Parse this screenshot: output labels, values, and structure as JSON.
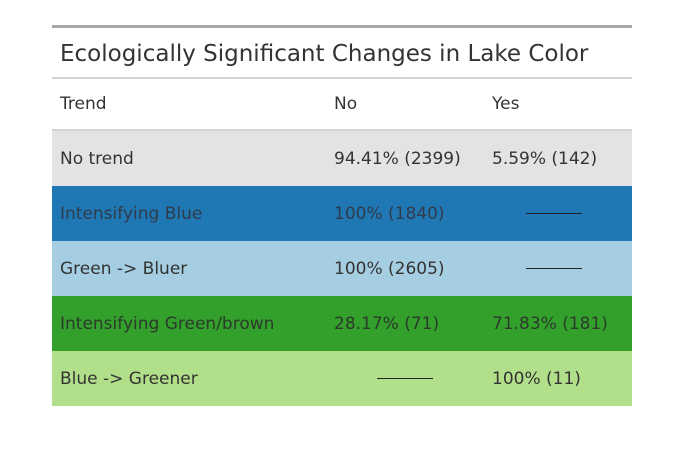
{
  "table": {
    "title": "Ecologically Significant Changes in Lake Color",
    "columns": [
      "Trend",
      "No",
      "Yes"
    ],
    "rows": [
      {
        "trend": "No trend",
        "no": "94.41% (2399)",
        "yes": "5.59% (142)",
        "bg": "#e3e3e3",
        "fg": "#333333"
      },
      {
        "trend": "Intensifying Blue",
        "no": "100% (1840)",
        "yes": "",
        "bg": "#1f78b4",
        "fg": "#2f3b4a"
      },
      {
        "trend": "Green -> Bluer",
        "no": "100% (2605)",
        "yes": "",
        "bg": "#a6cee3",
        "fg": "#333333"
      },
      {
        "trend": "Intensifying Green/brown",
        "no": "28.17% (71)",
        "yes": "71.83% (181)",
        "bg": "#33a02c",
        "fg": "#2b3a2b"
      },
      {
        "trend": "Blue -> Greener",
        "no": "",
        "yes": "100% (11)",
        "bg": "#b2df8a",
        "fg": "#333333"
      }
    ]
  }
}
